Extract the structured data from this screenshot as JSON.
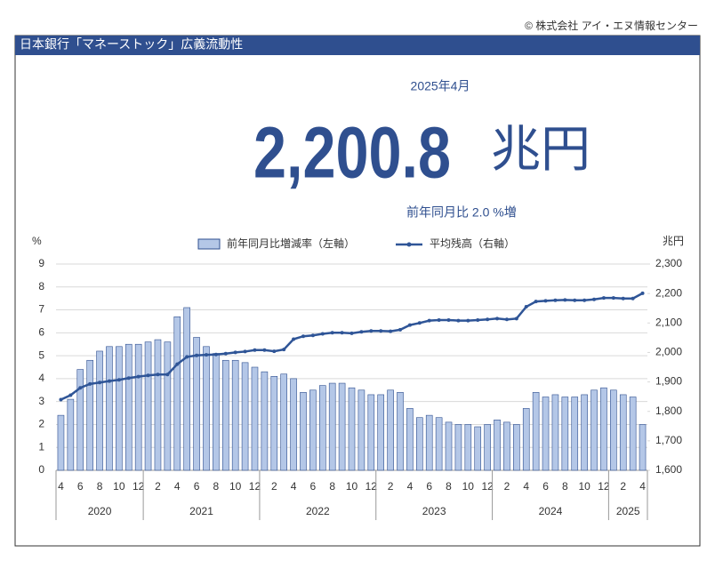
{
  "copyright": "© 株式会社 アイ・エヌ情報センター",
  "banner": "日本銀行「マネーストック」広義流動性",
  "headline": {
    "period": "2025年4月",
    "value": "2,200.8",
    "unit": "兆円",
    "change": "前年同月比 2.0 %増"
  },
  "chart_data": {
    "type": "bar-line",
    "y_label": "%",
    "y2_label": "兆円",
    "categories": [
      "4",
      null,
      "6",
      null,
      "8",
      null,
      "10",
      null,
      "12",
      null,
      "2",
      null,
      "4",
      null,
      "6",
      null,
      "8",
      null,
      "10",
      null,
      "12",
      null,
      "2",
      null,
      "4",
      null,
      "6",
      null,
      "8",
      null,
      "10",
      null,
      "12",
      null,
      "2",
      null,
      "4",
      null,
      "6",
      null,
      "8",
      null,
      "10",
      null,
      "12",
      null,
      "2",
      null,
      "4",
      null,
      "6",
      null,
      "8",
      null,
      "10",
      null,
      "12",
      null,
      "2",
      null,
      "4"
    ],
    "x_groups": [
      "2020",
      "2021",
      "2022",
      "2023",
      "2024",
      "2025"
    ],
    "series": [
      {
        "name": "前年同月比増減率（左軸）",
        "kind": "bar",
        "color": "#b4c7e7",
        "values": [
          2.4,
          3.1,
          4.4,
          4.8,
          5.2,
          5.4,
          5.4,
          5.5,
          5.5,
          5.6,
          5.7,
          5.6,
          6.7,
          7.1,
          5.8,
          5.4,
          5.1,
          4.8,
          4.8,
          4.7,
          4.5,
          4.3,
          4.1,
          4.2,
          4.0,
          3.4,
          3.5,
          3.7,
          3.8,
          3.8,
          3.6,
          3.5,
          3.3,
          3.3,
          3.5,
          3.4,
          2.7,
          2.3,
          2.4,
          2.3,
          2.1,
          2.0,
          2.0,
          1.9,
          2.0,
          2.2,
          2.1,
          2.0,
          2.7,
          3.4,
          3.2,
          3.3,
          3.2,
          3.2,
          3.3,
          3.5,
          3.6,
          3.5,
          3.3,
          3.2,
          2.0
        ]
      },
      {
        "name": "平均残高（右軸）",
        "kind": "line",
        "axis": "y2",
        "color": "#2f5597",
        "values": [
          1840,
          1855,
          1880,
          1893,
          1898,
          1903,
          1907,
          1913,
          1918,
          1922,
          1925,
          1925,
          1960,
          1985,
          1990,
          1992,
          1993,
          1996,
          2000,
          2003,
          2008,
          2008,
          2004,
          2010,
          2045,
          2055,
          2058,
          2063,
          2067,
          2067,
          2065,
          2070,
          2073,
          2073,
          2072,
          2077,
          2093,
          2100,
          2108,
          2110,
          2110,
          2108,
          2108,
          2110,
          2112,
          2115,
          2112,
          2115,
          2155,
          2173,
          2175,
          2177,
          2178,
          2177,
          2177,
          2180,
          2185,
          2185,
          2183,
          2183,
          2200.8
        ]
      }
    ],
    "ylim": [
      0,
      9
    ],
    "yticks": [
      0,
      1,
      2,
      3,
      4,
      5,
      6,
      7,
      8,
      9
    ],
    "y2lim": [
      1600,
      2300
    ],
    "y2ticks": [
      {
        "value": 1600,
        "label": "1,600"
      },
      {
        "value": 1700,
        "label": "1,700"
      },
      {
        "value": 1800,
        "label": "1,800"
      },
      {
        "value": 1900,
        "label": "1,900"
      },
      {
        "value": 2000,
        "label": "2,000"
      },
      {
        "value": 2100,
        "label": "2,100"
      },
      {
        "value": 2200,
        "label": "2,200"
      },
      {
        "value": 2300,
        "label": "2,300"
      }
    ],
    "grid": true
  }
}
